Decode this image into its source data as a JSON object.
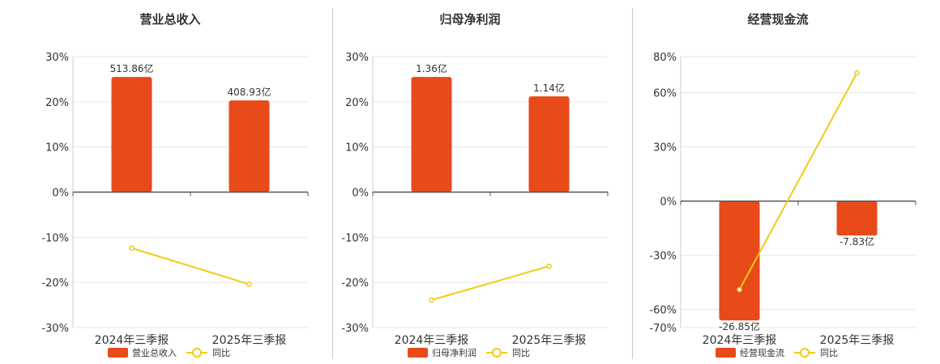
{
  "chart_data": [
    {
      "type": "bar",
      "title": "营业总收入",
      "categories": [
        "2024年三季报",
        "2025年三季报"
      ],
      "ylim": [
        -30,
        30
      ],
      "yticks": [
        "30%",
        "20%",
        "10%",
        "0%",
        "-10%",
        "-20%",
        "-30%"
      ],
      "ytick_values": [
        30,
        20,
        10,
        0,
        -10,
        -20,
        -30
      ],
      "series": [
        {
          "name": "营业总收入",
          "kind": "bar",
          "bar_level_pct": [
            25.5,
            20.3
          ],
          "labels": [
            "513.86亿",
            "408.93亿"
          ],
          "color": "#e84a1a"
        },
        {
          "name": "同比",
          "kind": "line",
          "values": [
            -12.4,
            -20.4
          ],
          "color": "#f0cc14"
        }
      ],
      "legend": "bottom-center",
      "grid": true
    },
    {
      "type": "bar",
      "title": "归母净利润",
      "categories": [
        "2024年三季报",
        "2025年三季报"
      ],
      "ylim": [
        -30,
        30
      ],
      "yticks": [
        "30%",
        "20%",
        "10%",
        "0%",
        "-10%",
        "-20%",
        "-30%"
      ],
      "ytick_values": [
        30,
        20,
        10,
        0,
        -10,
        -20,
        -30
      ],
      "series": [
        {
          "name": "归母净利润",
          "kind": "bar",
          "bar_level_pct": [
            25.5,
            21.2
          ],
          "labels": [
            "1.36亿",
            "1.14亿"
          ],
          "color": "#e84a1a"
        },
        {
          "name": "同比",
          "kind": "line",
          "values": [
            -23.9,
            -16.4
          ],
          "color": "#f0cc14"
        }
      ],
      "legend": "bottom-center",
      "grid": true
    },
    {
      "type": "bar",
      "title": "经营现金流",
      "categories": [
        "2024年三季报",
        "2025年三季报"
      ],
      "ylim": [
        -70,
        80
      ],
      "yticks": [
        "80%",
        "60%",
        "30%",
        "0%",
        "-30%",
        "-60%",
        "-70%"
      ],
      "ytick_values": [
        80,
        60,
        30,
        0,
        -30,
        -60,
        -70
      ],
      "series": [
        {
          "name": "经营现金流",
          "kind": "bar",
          "bar_level_pct": [
            -66,
            -19
          ],
          "labels": [
            "-26.85亿",
            "-7.83亿"
          ],
          "color": "#e84a1a"
        },
        {
          "name": "同比",
          "kind": "line",
          "values": [
            -49,
            71
          ],
          "color": "#f0cc14"
        }
      ],
      "legend": "bottom-center",
      "grid": true
    }
  ]
}
